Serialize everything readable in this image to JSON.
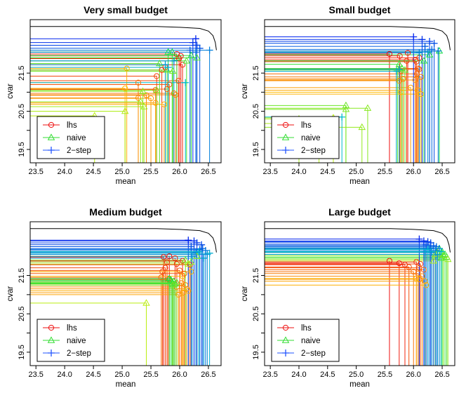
{
  "chart_data": [
    {
      "type": "scatter",
      "title": "Very small budget",
      "xlabel": "mean",
      "ylabel": "cvar",
      "xlim": [
        23.4,
        26.72
      ],
      "ylim": [
        19.15,
        22.9
      ],
      "xticks": [
        "23.5",
        "24.0",
        "24.5",
        "25.0",
        "25.5",
        "26.0",
        "26.5"
      ],
      "yticks": [
        "19.5",
        "20.5",
        "21.5"
      ],
      "legend": {
        "position": "bottom-left",
        "entries": [
          "lhs",
          "naive",
          "2−step"
        ]
      },
      "frontier": [
        [
          23.4,
          22.72
        ],
        [
          25.6,
          22.72
        ],
        [
          26.0,
          22.7
        ],
        [
          26.35,
          22.67
        ],
        [
          26.5,
          22.6
        ],
        [
          26.58,
          22.48
        ],
        [
          26.62,
          22.3
        ],
        [
          26.64,
          22.1
        ]
      ],
      "series": [
        {
          "name": "lhs",
          "marker": "circle",
          "points": [
            [
              26.02,
              21.95
            ],
            [
              25.95,
              22.0
            ],
            [
              25.99,
              21.88
            ],
            [
              26.05,
              21.72
            ],
            [
              25.75,
              21.65
            ],
            [
              25.69,
              21.58
            ],
            [
              25.6,
              21.42
            ],
            [
              25.98,
              21.3
            ],
            [
              25.82,
              21.2
            ],
            [
              25.78,
              21.08
            ],
            [
              25.58,
              21.06
            ],
            [
              25.28,
              21.25
            ],
            [
              25.9,
              20.97
            ],
            [
              25.93,
              20.93
            ],
            [
              25.42,
              20.92
            ],
            [
              25.28,
              20.85
            ],
            [
              25.5,
              20.84
            ],
            [
              25.58,
              20.72
            ],
            [
              25.73,
              20.68
            ],
            [
              25.08,
              21.62
            ],
            [
              25.05,
              21.1
            ]
          ]
        },
        {
          "name": "naive",
          "marker": "triangle",
          "points": [
            [
              25.8,
              22.05
            ],
            [
              25.87,
              22.05
            ],
            [
              26.2,
              21.96
            ],
            [
              25.95,
              21.9
            ],
            [
              26.3,
              21.9
            ],
            [
              26.12,
              21.82
            ],
            [
              25.65,
              21.75
            ],
            [
              25.78,
              21.58
            ],
            [
              25.88,
              21.55
            ],
            [
              25.6,
              21.05
            ],
            [
              25.36,
              21.02
            ],
            [
              25.32,
              20.75
            ],
            [
              25.38,
              20.62
            ],
            [
              25.05,
              20.5
            ],
            [
              24.52,
              20.38
            ]
          ]
        },
        {
          "name": "2−step",
          "marker": "plus",
          "points": [
            [
              26.28,
              22.4
            ],
            [
              26.23,
              22.3
            ],
            [
              26.3,
              22.23
            ],
            [
              26.35,
              22.15
            ],
            [
              26.18,
              22.1
            ],
            [
              26.28,
              22.05
            ],
            [
              26.52,
              22.1
            ],
            [
              25.9,
              21.82
            ],
            [
              25.75,
              21.72
            ],
            [
              25.8,
              21.65
            ],
            [
              26.1,
              21.25
            ]
          ]
        }
      ]
    },
    {
      "type": "scatter",
      "title": "Small budget",
      "xlabel": "mean",
      "ylabel": "cvar",
      "xlim": [
        23.4,
        26.72
      ],
      "ylim": [
        19.15,
        22.9
      ],
      "xticks": [
        "23.5",
        "24.0",
        "24.5",
        "25.0",
        "25.5",
        "26.0",
        "26.5"
      ],
      "yticks": [
        "19.5",
        "20.5",
        "21.5"
      ],
      "legend": {
        "position": "bottom-left",
        "entries": [
          "lhs",
          "naive",
          "2−step"
        ]
      },
      "frontier": [
        [
          23.4,
          22.72
        ],
        [
          25.6,
          22.72
        ],
        [
          26.0,
          22.7
        ],
        [
          26.35,
          22.67
        ],
        [
          26.5,
          22.6
        ],
        [
          26.58,
          22.48
        ],
        [
          26.62,
          22.3
        ],
        [
          26.64,
          22.1
        ]
      ],
      "series": [
        {
          "name": "lhs",
          "marker": "circle",
          "points": [
            [
              25.58,
              22.0
            ],
            [
              25.9,
              22.03
            ],
            [
              25.76,
              21.95
            ],
            [
              26.1,
              21.9
            ],
            [
              26.03,
              21.85
            ],
            [
              25.88,
              21.82
            ],
            [
              26.05,
              21.8
            ],
            [
              26.08,
              21.62
            ],
            [
              26.1,
              21.6
            ],
            [
              25.78,
              21.55
            ],
            [
              26.06,
              21.48
            ],
            [
              26.13,
              21.4
            ],
            [
              25.82,
              21.35
            ],
            [
              25.75,
              21.3
            ],
            [
              26.03,
              21.32
            ],
            [
              25.95,
              21.12
            ],
            [
              26.08,
              21.05
            ],
            [
              26.13,
              20.95
            ],
            [
              25.78,
              21.0
            ]
          ]
        },
        {
          "name": "naive",
          "marker": "triangle",
          "points": [
            [
              26.45,
              22.08
            ],
            [
              26.28,
              21.98
            ],
            [
              26.18,
              21.82
            ],
            [
              25.75,
              21.73
            ],
            [
              25.8,
              21.62
            ],
            [
              25.72,
              21.6
            ],
            [
              25.85,
              21.58
            ],
            [
              24.82,
              20.65
            ],
            [
              24.82,
              20.55
            ],
            [
              25.2,
              20.58
            ],
            [
              25.1,
              20.08
            ],
            [
              24.0,
              20.3
            ],
            [
              24.35,
              20.18
            ],
            [
              24.6,
              20.33
            ]
          ]
        },
        {
          "name": "2−step",
          "marker": "plus",
          "points": [
            [
              26.0,
              22.45
            ],
            [
              26.15,
              22.38
            ],
            [
              26.28,
              22.33
            ],
            [
              26.36,
              22.28
            ],
            [
              26.2,
              22.2
            ],
            [
              26.32,
              22.12
            ],
            [
              26.43,
              22.08
            ],
            [
              26.1,
              22.03
            ],
            [
              26.25,
              22.05
            ],
            [
              25.75,
              21.6
            ],
            [
              25.7,
              21.55
            ],
            [
              24.75,
              20.35
            ]
          ]
        }
      ]
    },
    {
      "type": "scatter",
      "title": "Medium budget",
      "xlabel": "mean",
      "ylabel": "cvar",
      "xlim": [
        23.4,
        26.72
      ],
      "ylim": [
        19.15,
        22.9
      ],
      "xticks": [
        "23.5",
        "24.0",
        "24.5",
        "25.0",
        "25.5",
        "26.0",
        "26.5"
      ],
      "yticks": [
        "19.5",
        "20.5",
        "21.5"
      ],
      "legend": {
        "position": "bottom-left",
        "entries": [
          "lhs",
          "naive",
          "2−step"
        ]
      },
      "frontier": [
        [
          23.4,
          22.72
        ],
        [
          25.6,
          22.72
        ],
        [
          26.0,
          22.7
        ],
        [
          26.35,
          22.67
        ],
        [
          26.5,
          22.6
        ],
        [
          26.58,
          22.48
        ],
        [
          26.62,
          22.3
        ],
        [
          26.64,
          22.1
        ]
      ],
      "series": [
        {
          "name": "lhs",
          "marker": "circle",
          "points": [
            [
              25.82,
              22.0
            ],
            [
              25.72,
              21.98
            ],
            [
              25.92,
              21.95
            ],
            [
              26.05,
              21.88
            ],
            [
              25.78,
              21.85
            ],
            [
              25.95,
              21.8
            ],
            [
              26.18,
              21.78
            ],
            [
              25.75,
              21.7
            ],
            [
              25.7,
              21.6
            ],
            [
              26.0,
              21.63
            ],
            [
              26.08,
              21.55
            ],
            [
              25.68,
              21.45
            ],
            [
              25.8,
              21.4
            ],
            [
              25.88,
              21.35
            ],
            [
              26.03,
              21.3
            ],
            [
              26.1,
              21.25
            ],
            [
              25.95,
              21.2
            ],
            [
              26.12,
              21.15
            ],
            [
              26.06,
              21.05
            ],
            [
              25.98,
              21.0
            ],
            [
              26.15,
              21.1
            ],
            [
              26.05,
              21.48
            ],
            [
              26.2,
              21.6
            ]
          ]
        },
        {
          "name": "naive",
          "marker": "triangle",
          "points": [
            [
              25.82,
              21.42
            ],
            [
              25.85,
              21.38
            ],
            [
              25.9,
              21.35
            ],
            [
              25.87,
              21.3
            ],
            [
              25.92,
              21.28
            ],
            [
              25.95,
              21.32
            ],
            [
              25.88,
              21.25
            ],
            [
              26.1,
              21.9
            ],
            [
              26.2,
              21.85
            ],
            [
              26.3,
              22.0
            ],
            [
              26.15,
              21.8
            ],
            [
              25.42,
              20.78
            ]
          ]
        },
        {
          "name": "2−step",
          "marker": "plus",
          "points": [
            [
              26.15,
              22.42
            ],
            [
              26.25,
              22.4
            ],
            [
              26.3,
              22.35
            ],
            [
              26.38,
              22.3
            ],
            [
              26.2,
              22.25
            ],
            [
              26.4,
              22.2
            ],
            [
              26.35,
              22.18
            ],
            [
              26.45,
              22.15
            ],
            [
              26.28,
              22.1
            ],
            [
              26.48,
              22.05
            ],
            [
              26.22,
              22.0
            ],
            [
              26.42,
              21.95
            ],
            [
              26.52,
              22.08
            ],
            [
              26.33,
              22.12
            ]
          ]
        }
      ]
    },
    {
      "type": "scatter",
      "title": "Large budget",
      "xlabel": "mean",
      "ylabel": "cvar",
      "xlim": [
        23.4,
        26.72
      ],
      "ylim": [
        19.15,
        22.9
      ],
      "xticks": [
        "23.5",
        "24.0",
        "24.5",
        "25.0",
        "25.5",
        "26.0",
        "26.5"
      ],
      "yticks": [
        "19.5",
        "20.5",
        "21.5"
      ],
      "legend": {
        "position": "bottom-left",
        "entries": [
          "lhs",
          "naive",
          "2−step"
        ]
      },
      "frontier": [
        [
          23.4,
          22.72
        ],
        [
          25.6,
          22.72
        ],
        [
          26.0,
          22.7
        ],
        [
          26.35,
          22.67
        ],
        [
          26.5,
          22.6
        ],
        [
          26.58,
          22.48
        ],
        [
          26.62,
          22.3
        ],
        [
          26.64,
          22.1
        ]
      ],
      "series": [
        {
          "name": "lhs",
          "marker": "circle",
          "points": [
            [
              25.58,
              21.88
            ],
            [
              25.75,
              21.82
            ],
            [
              25.85,
              21.78
            ],
            [
              26.05,
              21.85
            ],
            [
              26.12,
              21.8
            ],
            [
              25.92,
              21.72
            ],
            [
              26.1,
              21.7
            ],
            [
              26.18,
              21.65
            ],
            [
              26.0,
              21.6
            ],
            [
              26.08,
              21.55
            ],
            [
              26.15,
              21.48
            ],
            [
              26.1,
              21.4
            ],
            [
              26.2,
              21.35
            ],
            [
              26.22,
              21.25
            ],
            [
              26.05,
              21.42
            ]
          ]
        },
        {
          "name": "naive",
          "marker": "triangle",
          "points": [
            [
              26.45,
              22.2
            ],
            [
              26.5,
              22.12
            ],
            [
              26.55,
              22.05
            ],
            [
              26.58,
              21.98
            ],
            [
              26.48,
              21.95
            ],
            [
              26.42,
              22.1
            ],
            [
              26.52,
              22.02
            ],
            [
              26.6,
              21.92
            ],
            [
              26.38,
              22.05
            ],
            [
              26.35,
              21.88
            ]
          ]
        },
        {
          "name": "2−step",
          "marker": "plus",
          "points": [
            [
              26.1,
              22.45
            ],
            [
              26.18,
              22.4
            ],
            [
              26.25,
              22.38
            ],
            [
              26.3,
              22.35
            ],
            [
              26.22,
              22.3
            ],
            [
              26.35,
              22.28
            ],
            [
              26.4,
              22.25
            ],
            [
              26.28,
              22.22
            ],
            [
              26.45,
              22.2
            ],
            [
              26.38,
              22.15
            ],
            [
              26.32,
              22.1
            ],
            [
              26.42,
              22.05
            ],
            [
              26.2,
              22.12
            ],
            [
              26.25,
              22.18
            ],
            [
              26.48,
              22.12
            ]
          ]
        }
      ]
    }
  ]
}
